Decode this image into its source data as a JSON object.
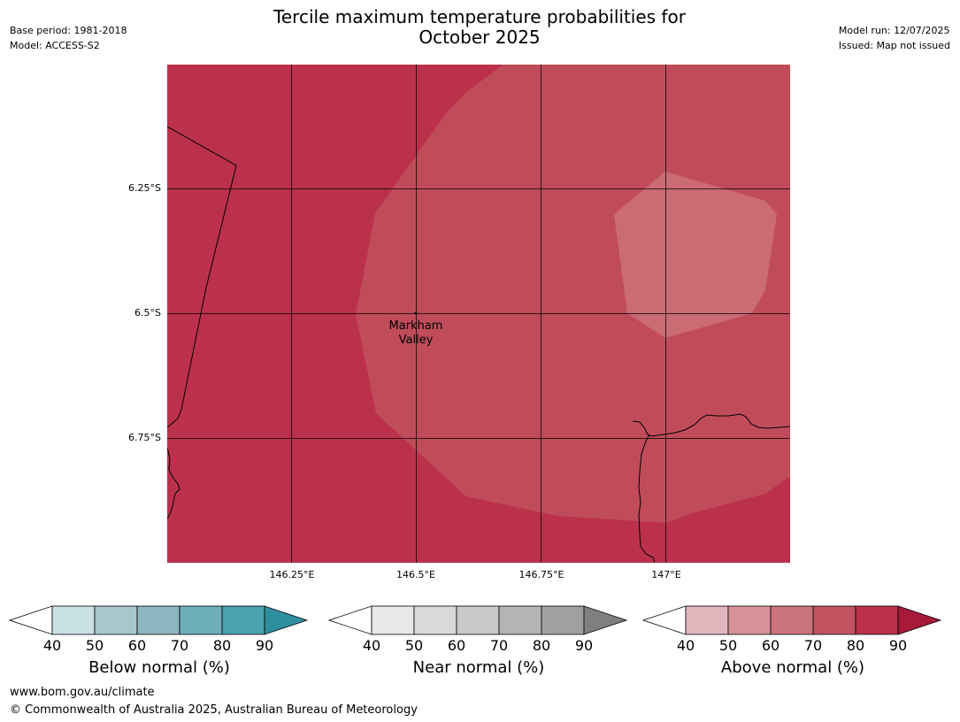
{
  "title_line1": "Tercile maximum temperature probabilities for",
  "title_line2": "October 2025",
  "base_period": "Base period: 1981-2018",
  "model": "Model: ACCESS-S2",
  "model_run": "Model run: 12/07/2025",
  "issued": "Issued: Map not issued",
  "map": {
    "lat_labels": [
      "6.25°S",
      "6.5°S",
      "6.75°S"
    ],
    "lon_labels": [
      "146.25°E",
      "146.5°E",
      "146.75°E",
      "147°E"
    ],
    "place_name_line1": "Markham",
    "place_name_line2": "Valley",
    "colors": {
      "band_80_90": "#bb314b",
      "band_70_80": "#c04c5a",
      "band_60_70": "#cb6b74"
    }
  },
  "colorbars": [
    {
      "label": "Below normal (%)",
      "ticks": [
        "40",
        "50",
        "60",
        "70",
        "80",
        "90"
      ],
      "colors": [
        "#ffffff",
        "#c9e1e5",
        "#a8c6cb",
        "#8cb5c1",
        "#6daebb",
        "#4aa1b0",
        "#2f8e9e"
      ]
    },
    {
      "label": "Near normal (%)",
      "ticks": [
        "40",
        "50",
        "60",
        "70",
        "80",
        "90"
      ],
      "colors": [
        "#ffffff",
        "#e8e8e8",
        "#d9d9d9",
        "#c8c8c8",
        "#b4b4b4",
        "#a0a0a0",
        "#808080"
      ]
    },
    {
      "label": "Above normal (%)",
      "ticks": [
        "40",
        "50",
        "60",
        "70",
        "80",
        "90"
      ],
      "colors": [
        "#ffffff",
        "#e2b6bc",
        "#d6929b",
        "#cb747c",
        "#c1525f",
        "#bb314b",
        "#a8193a"
      ]
    }
  ],
  "footer_url": "www.bom.gov.au/climate",
  "footer_copyright": "© Commonwealth of Australia 2025, Australian Bureau of Meteorology"
}
